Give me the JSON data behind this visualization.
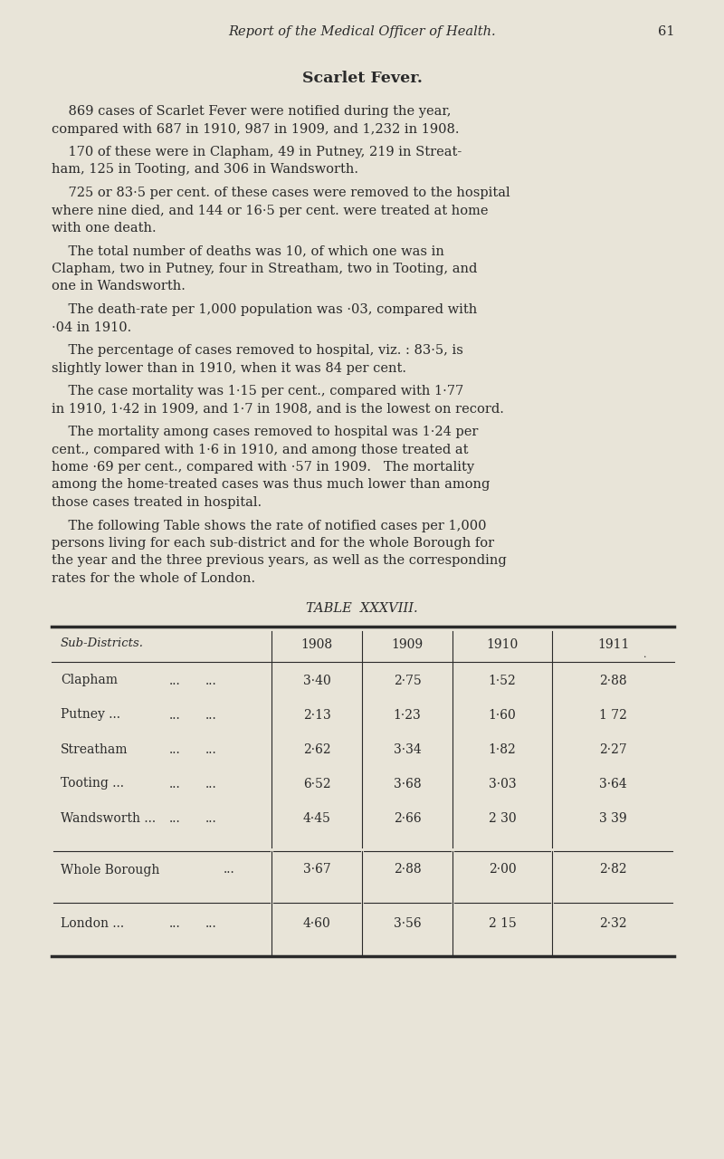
{
  "page_number": "61",
  "header_italic": "Report of the Medical Officer of Health.",
  "title": "Scarlet Fever.",
  "background_color": "#e8e4d8",
  "text_color": "#2a2a2a",
  "para_lines": [
    [
      "    869 cases of Scarlet Fever were notified during the year,",
      "compared with 687 in 1910, 987 in 1909, and 1,232 in 1908."
    ],
    [
      "    170 of these were in Clapham, 49 in Putney, 219 in Streat-",
      "ham, 125 in Tooting, and 306 in Wandsworth."
    ],
    [
      "    725 or 83·5 per cent. of these cases were removed to the hospital",
      "where nine died, and 144 or 16·5 per cent. were treated at home",
      "with one death."
    ],
    [
      "    The total number of deaths was 10, of which one was in",
      "Clapham, two in Putney, four in Streatham, two in Tooting, and",
      "one in Wandsworth."
    ],
    [
      "    The death-rate per 1,000 population was ·03, compared with",
      "·04 in 1910."
    ],
    [
      "    The percentage of cases removed to hospital, viz. : 83·5, is",
      "slightly lower than in 1910, when it was 84 per cent."
    ],
    [
      "    The case mortality was 1·15 per cent., compared with 1·77",
      "in 1910, 1·42 in 1909, and 1·7 in 1908, and is the lowest on record."
    ],
    [
      "    The mortality among cases removed to hospital was 1·24 per",
      "cent., compared with 1·6 in 1910, and among those treated at",
      "home ·69 per cent., compared with ·57 in 1909.   The mortality",
      "among the home-treated cases was thus much lower than among",
      "those cases treated in hospital."
    ],
    [
      "    The following Table shows the rate of notified cases per 1,000",
      "persons living for each sub-district and for the whole Borough for",
      "the year and the three previous years, as well as the corresponding",
      "rates for the whole of London."
    ]
  ],
  "table_title": "TABLE  XXXVIII.",
  "col_headers": [
    "Sub-Districts.",
    "1908",
    "1909",
    "1910",
    "1911"
  ],
  "table_rows": [
    [
      "Clapham",
      "...",
      "...",
      "3·40",
      "2·75",
      "1·52",
      "2·88"
    ],
    [
      "Putney ...",
      "...",
      "...",
      "2·13",
      "1·23",
      "1·60",
      "1 72"
    ],
    [
      "Streatham",
      "...",
      "...",
      "2·62",
      "3·34",
      "1·82",
      "2·27"
    ],
    [
      "Tooting ...",
      "...",
      "...",
      "6·52",
      "3·68",
      "3·03",
      "3·64"
    ],
    [
      "Wandsworth ...",
      "...",
      "...",
      "4·45",
      "2·66",
      "2 30",
      "3 39"
    ]
  ],
  "borough_row": [
    "Whole Borough",
    "...",
    "3·67",
    "2·88",
    "2·00",
    "2·82"
  ],
  "london_row": [
    "London ...",
    "...",
    "...",
    "4·60",
    "3·56",
    "2 15",
    "2·32"
  ]
}
